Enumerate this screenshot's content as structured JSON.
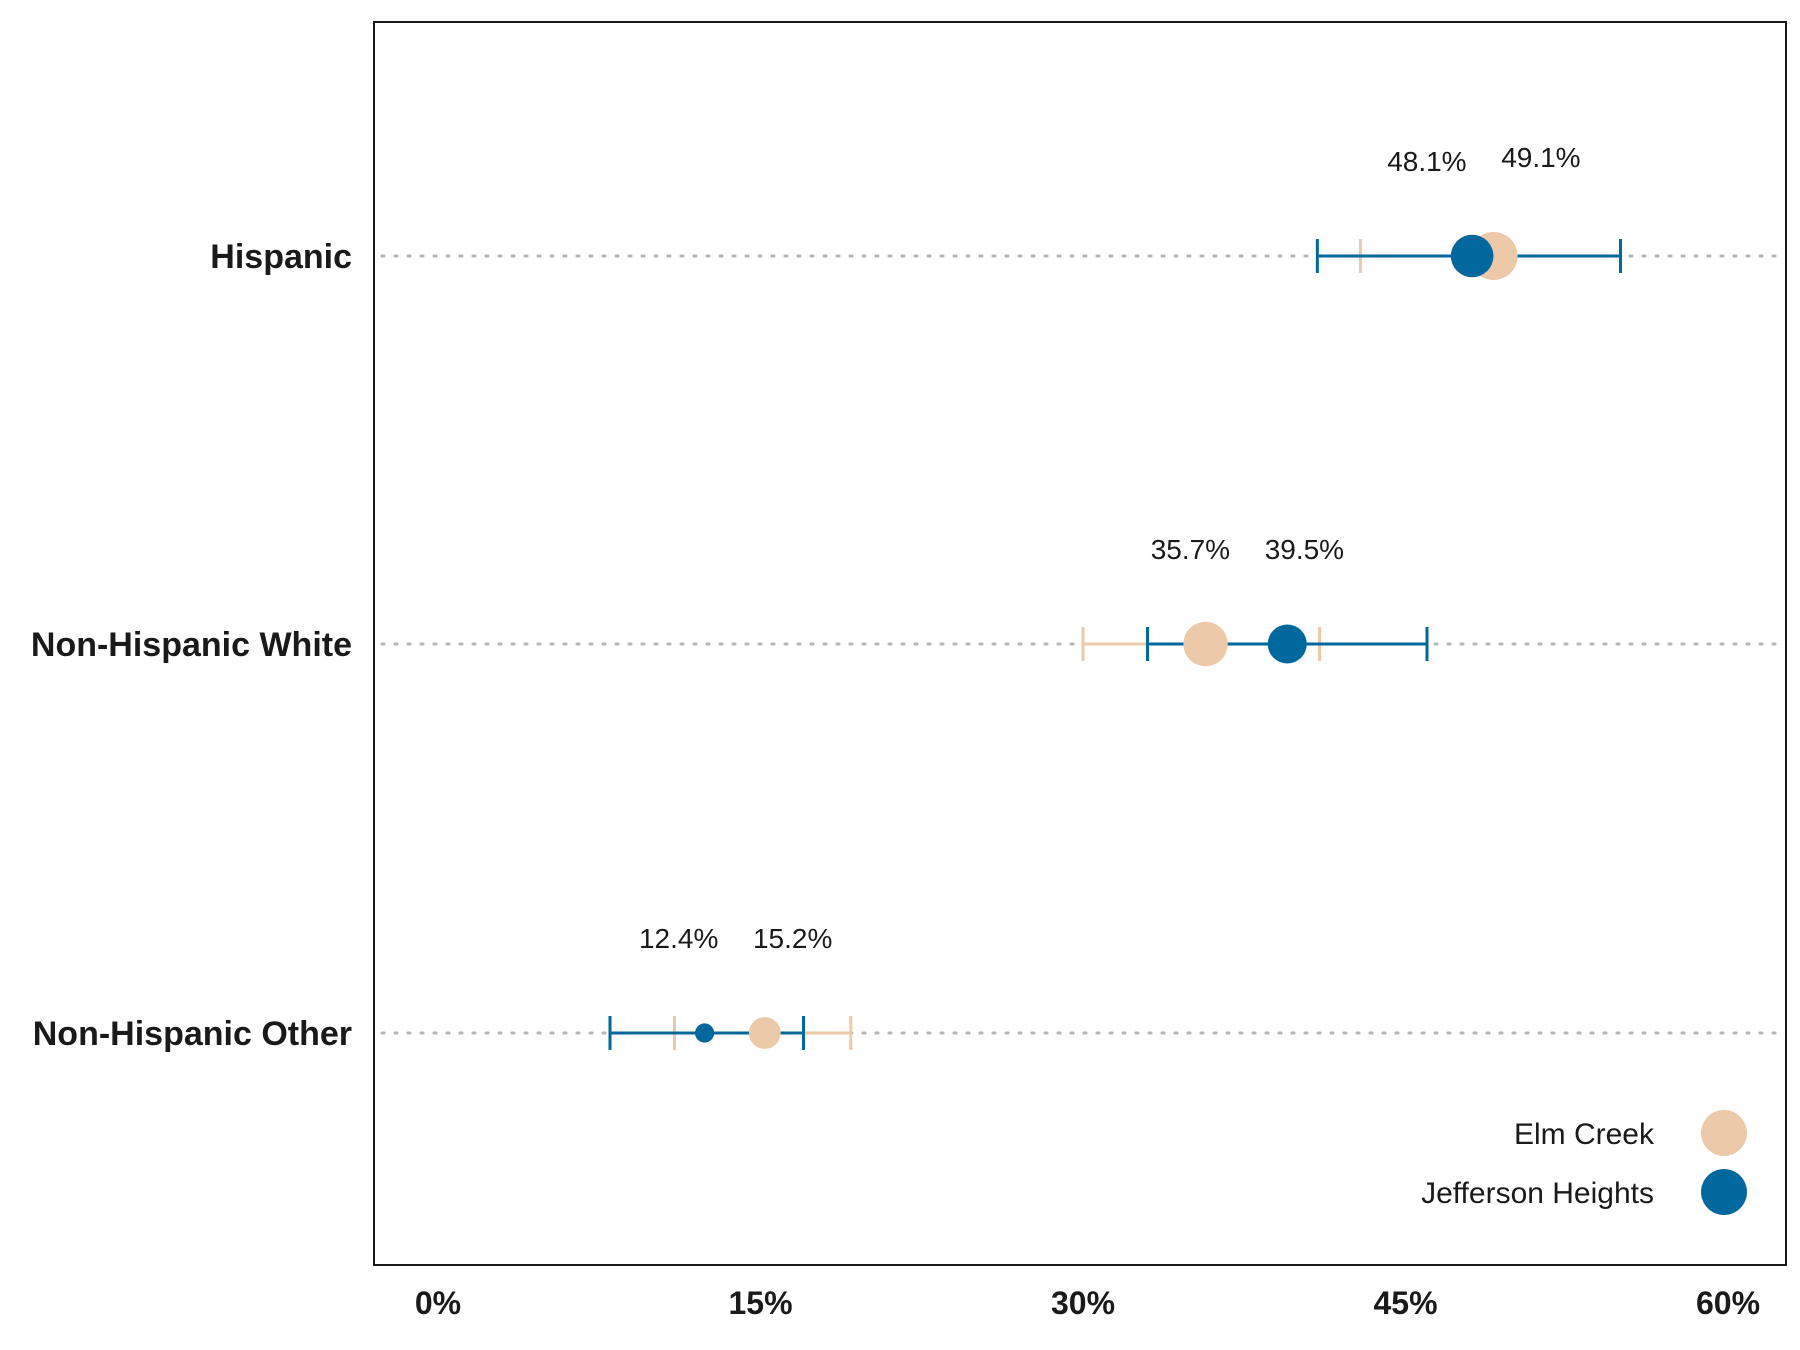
{
  "chart_data": {
    "type": "scatter",
    "subtype": "dot-plot-with-error-bars",
    "categories": [
      "Hispanic",
      "Non-Hispanic White",
      "Non-Hispanic Other"
    ],
    "xlim": [
      0,
      60
    ],
    "x_ticks": [
      0,
      15,
      30,
      45,
      60
    ],
    "x_tick_labels": [
      "0%",
      "15%",
      "30%",
      "45%",
      "60%"
    ],
    "grid": "dotted horizontal lines per category",
    "legend_position": "bottom-right",
    "series": [
      {
        "name": "Elm Creek",
        "color": "#ecc9a8",
        "points": [
          {
            "category": "Hispanic",
            "value": 49.1,
            "low": 42.9,
            "high": 55.0,
            "label": "49.1%",
            "size": 1.0
          },
          {
            "category": "Non-Hispanic White",
            "value": 35.7,
            "low": 30.0,
            "high": 41.0,
            "label": "35.7%",
            "size": 0.9
          },
          {
            "category": "Non-Hispanic Other",
            "value": 15.2,
            "low": 11.0,
            "high": 19.2,
            "label": "15.2%",
            "size": 0.55
          }
        ]
      },
      {
        "name": "Jefferson Heights",
        "color": "#00689d",
        "points": [
          {
            "category": "Hispanic",
            "value": 48.1,
            "low": 40.9,
            "high": 55.0,
            "label": "48.1%",
            "size": 0.85
          },
          {
            "category": "Non-Hispanic White",
            "value": 39.5,
            "low": 33.0,
            "high": 46.0,
            "label": "39.5%",
            "size": 0.75
          },
          {
            "category": "Non-Hispanic Other",
            "value": 12.4,
            "low": 8.0,
            "high": 17.0,
            "label": "12.4%",
            "size": 0.2
          }
        ]
      }
    ]
  }
}
